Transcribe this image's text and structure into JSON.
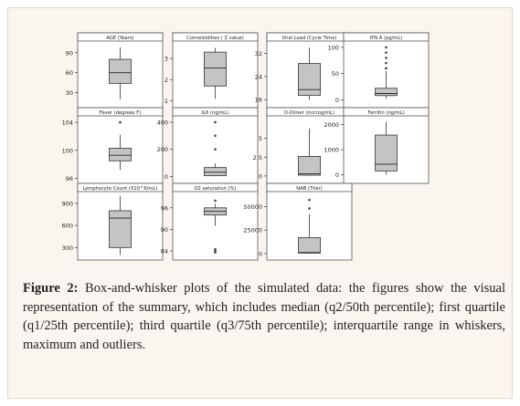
{
  "caption": {
    "label": "Figure 2:",
    "text": " Box-and-whisker plots of the simulated data: the figures show the visual representation of the summary, which includes median (q2/50th percentile); first quartile (q1/25th percentile); third quartile (q3/75th percentile); interquartile range in whiskers, maximum and outliers."
  },
  "colors": {
    "box_fill": "#c4c4c4",
    "frame_bg": "#fbf5ef",
    "outlier": "#444444"
  },
  "chart_data": [
    {
      "type": "box",
      "title": "AGE (Years)",
      "yticks": [
        30,
        60,
        90
      ],
      "ylim": [
        13,
        102
      ],
      "stats": {
        "min": 20,
        "q1": 44,
        "median": 60,
        "q3": 80,
        "max": 98
      },
      "outliers": []
    },
    {
      "type": "box",
      "title": "Comorbidities ( Z value)",
      "yticks": [
        1,
        2,
        3
      ],
      "ylim": [
        0.85,
        3.65
      ],
      "stats": {
        "min": 1.1,
        "q1": 1.7,
        "median": 2.55,
        "q3": 3.3,
        "max": 3.5
      },
      "outliers": []
    },
    {
      "type": "box",
      "title": "Viral Load (Cycle Time)",
      "yticks": [
        16,
        24,
        32
      ],
      "ylim": [
        14.5,
        35
      ],
      "stats": {
        "min": 16,
        "q1": 17.5,
        "median": 19.5,
        "q3": 28.5,
        "max": 34
      },
      "outliers": []
    },
    {
      "type": "box",
      "title": "IFN A (pg/mL)",
      "yticks": [
        0,
        50,
        100
      ],
      "ylim": [
        -8,
        105
      ],
      "stats": {
        "min": 2,
        "q1": 8,
        "median": 12,
        "q3": 22,
        "max": 55
      },
      "outliers": [
        60,
        60,
        70,
        80,
        90,
        100
      ]
    },
    {
      "type": "box",
      "title": "Fever (degrees F)",
      "yticks": [
        96,
        100,
        104
      ],
      "ylim": [
        95.8,
        104.4
      ],
      "stats": {
        "min": 97.2,
        "q1": 98.5,
        "median": 99.3,
        "q3": 100.3,
        "max": 102.2
      },
      "outliers": [
        104
      ]
    },
    {
      "type": "box",
      "title": "IL6 (ng/mL)",
      "yticks": [
        0,
        200,
        400
      ],
      "ylim": [
        -25,
        420
      ],
      "stats": {
        "min": 0,
        "q1": 5,
        "median": 30,
        "q3": 65,
        "max": 95
      },
      "outliers": [
        200,
        300,
        400
      ]
    },
    {
      "type": "box",
      "title": "D-Dimer (microg/mL)",
      "yticks": [
        0.0,
        2.5,
        5.0
      ],
      "ylim": [
        -0.5,
        7.5
      ],
      "stats": {
        "min": 0.0,
        "q1": 0.1,
        "median": 0.3,
        "q3": 2.6,
        "max": 6.3
      },
      "outliers": []
    },
    {
      "type": "box",
      "title": "Ferritin (ng/mL)",
      "yticks": [
        0,
        1000,
        2000
      ],
      "ylim": [
        -200,
        2200
      ],
      "stats": {
        "min": 0,
        "q1": 150,
        "median": 420,
        "q3": 1580,
        "max": 2100
      },
      "outliers": []
    },
    {
      "type": "box",
      "title": "Lymphocyte Count (X10^6/mL)",
      "yticks": [
        300,
        600,
        900
      ],
      "ylim": [
        180,
        1010
      ],
      "stats": {
        "min": 200,
        "q1": 300,
        "median": 700,
        "q3": 800,
        "max": 1000
      },
      "outliers": []
    },
    {
      "type": "box",
      "title": "O2 saturation (%)",
      "yticks": [
        84,
        90,
        96
      ],
      "ylim": [
        82.5,
        99.5
      ],
      "stats": {
        "min": 91,
        "q1": 94,
        "median": 95,
        "q3": 96,
        "max": 97.2
      },
      "outliers": [
        98,
        84.5,
        84,
        83.6
      ]
    },
    {
      "type": "box",
      "title": "NAB (Titer)",
      "yticks": [
        0,
        25000,
        50000
      ],
      "ylim": [
        -3000,
        62000
      ],
      "stats": {
        "min": 0,
        "q1": 500,
        "median": 1000,
        "q3": 17000,
        "max": 42000
      },
      "outliers": [
        48000,
        57000
      ]
    }
  ]
}
